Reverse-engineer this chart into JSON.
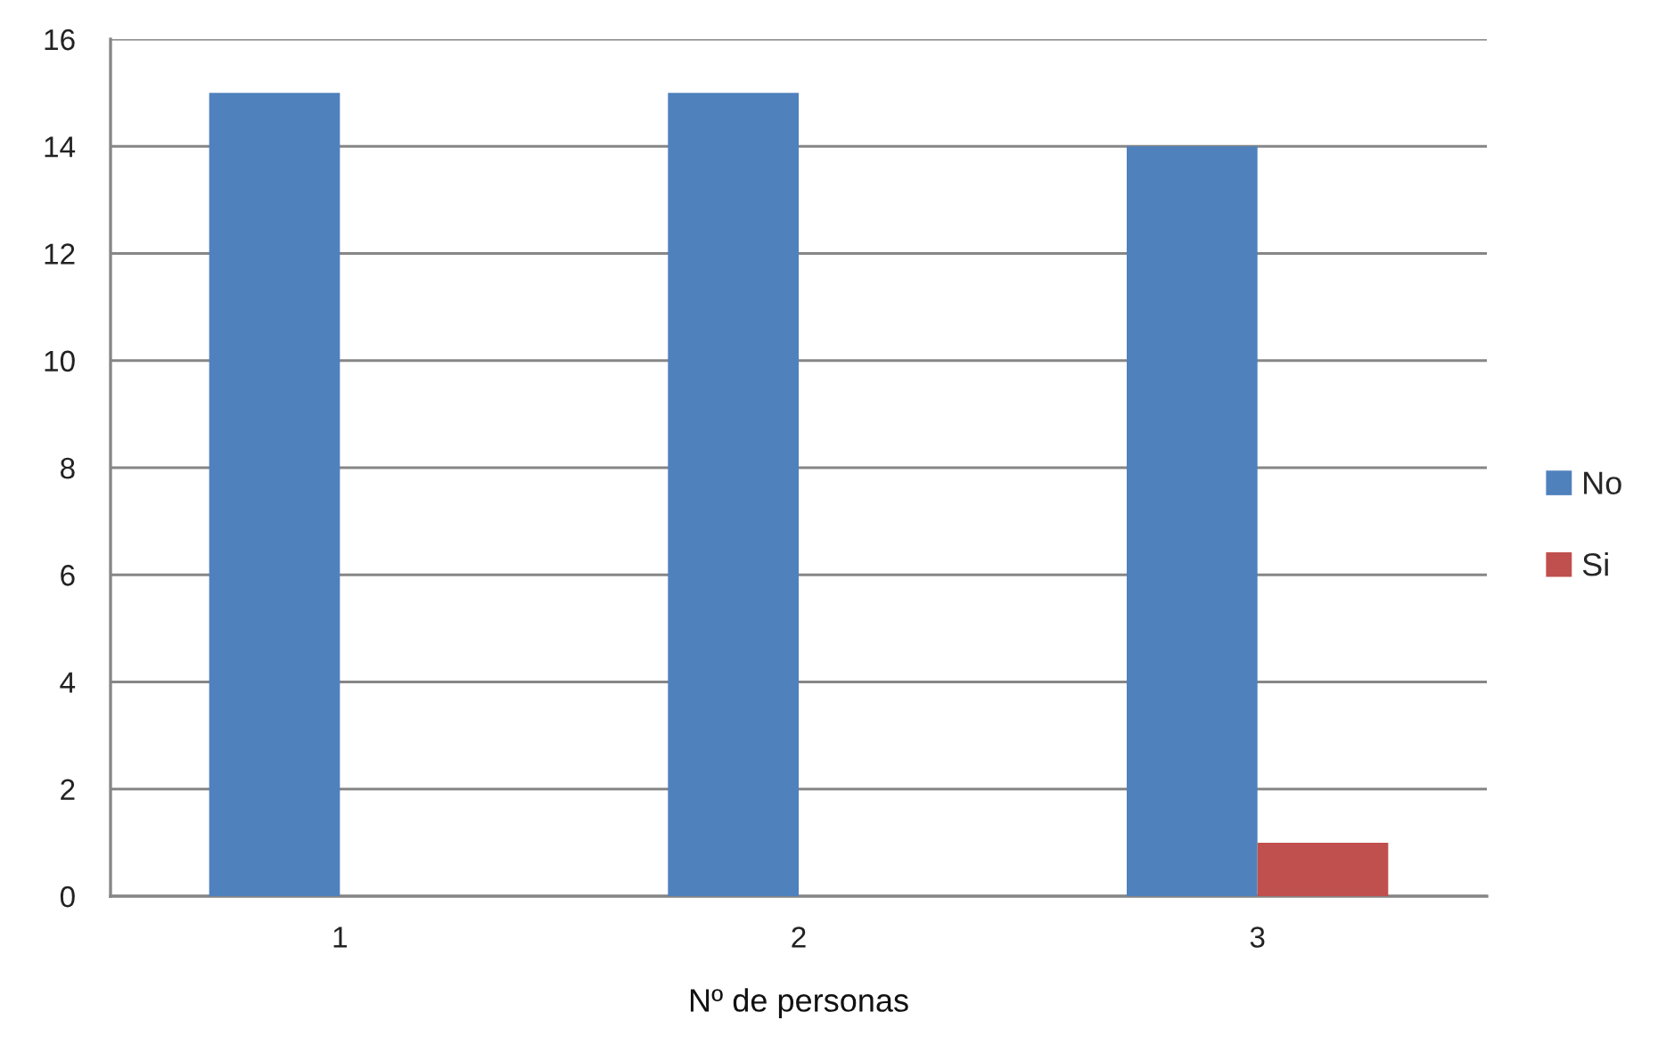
{
  "chart_data": {
    "type": "bar",
    "xlabel": "Nº de personas",
    "categories": [
      "1",
      "2",
      "3"
    ],
    "series": [
      {
        "name": "No",
        "color": "#4f81bd",
        "values": [
          15,
          15,
          14
        ]
      },
      {
        "name": "Si",
        "color": "#c0504d",
        "values": [
          0,
          0,
          1
        ]
      }
    ],
    "ylim": [
      0,
      16
    ],
    "yticks": [
      0,
      2,
      4,
      6,
      8,
      10,
      12,
      14,
      16
    ],
    "grid": "y",
    "legend": "right"
  }
}
